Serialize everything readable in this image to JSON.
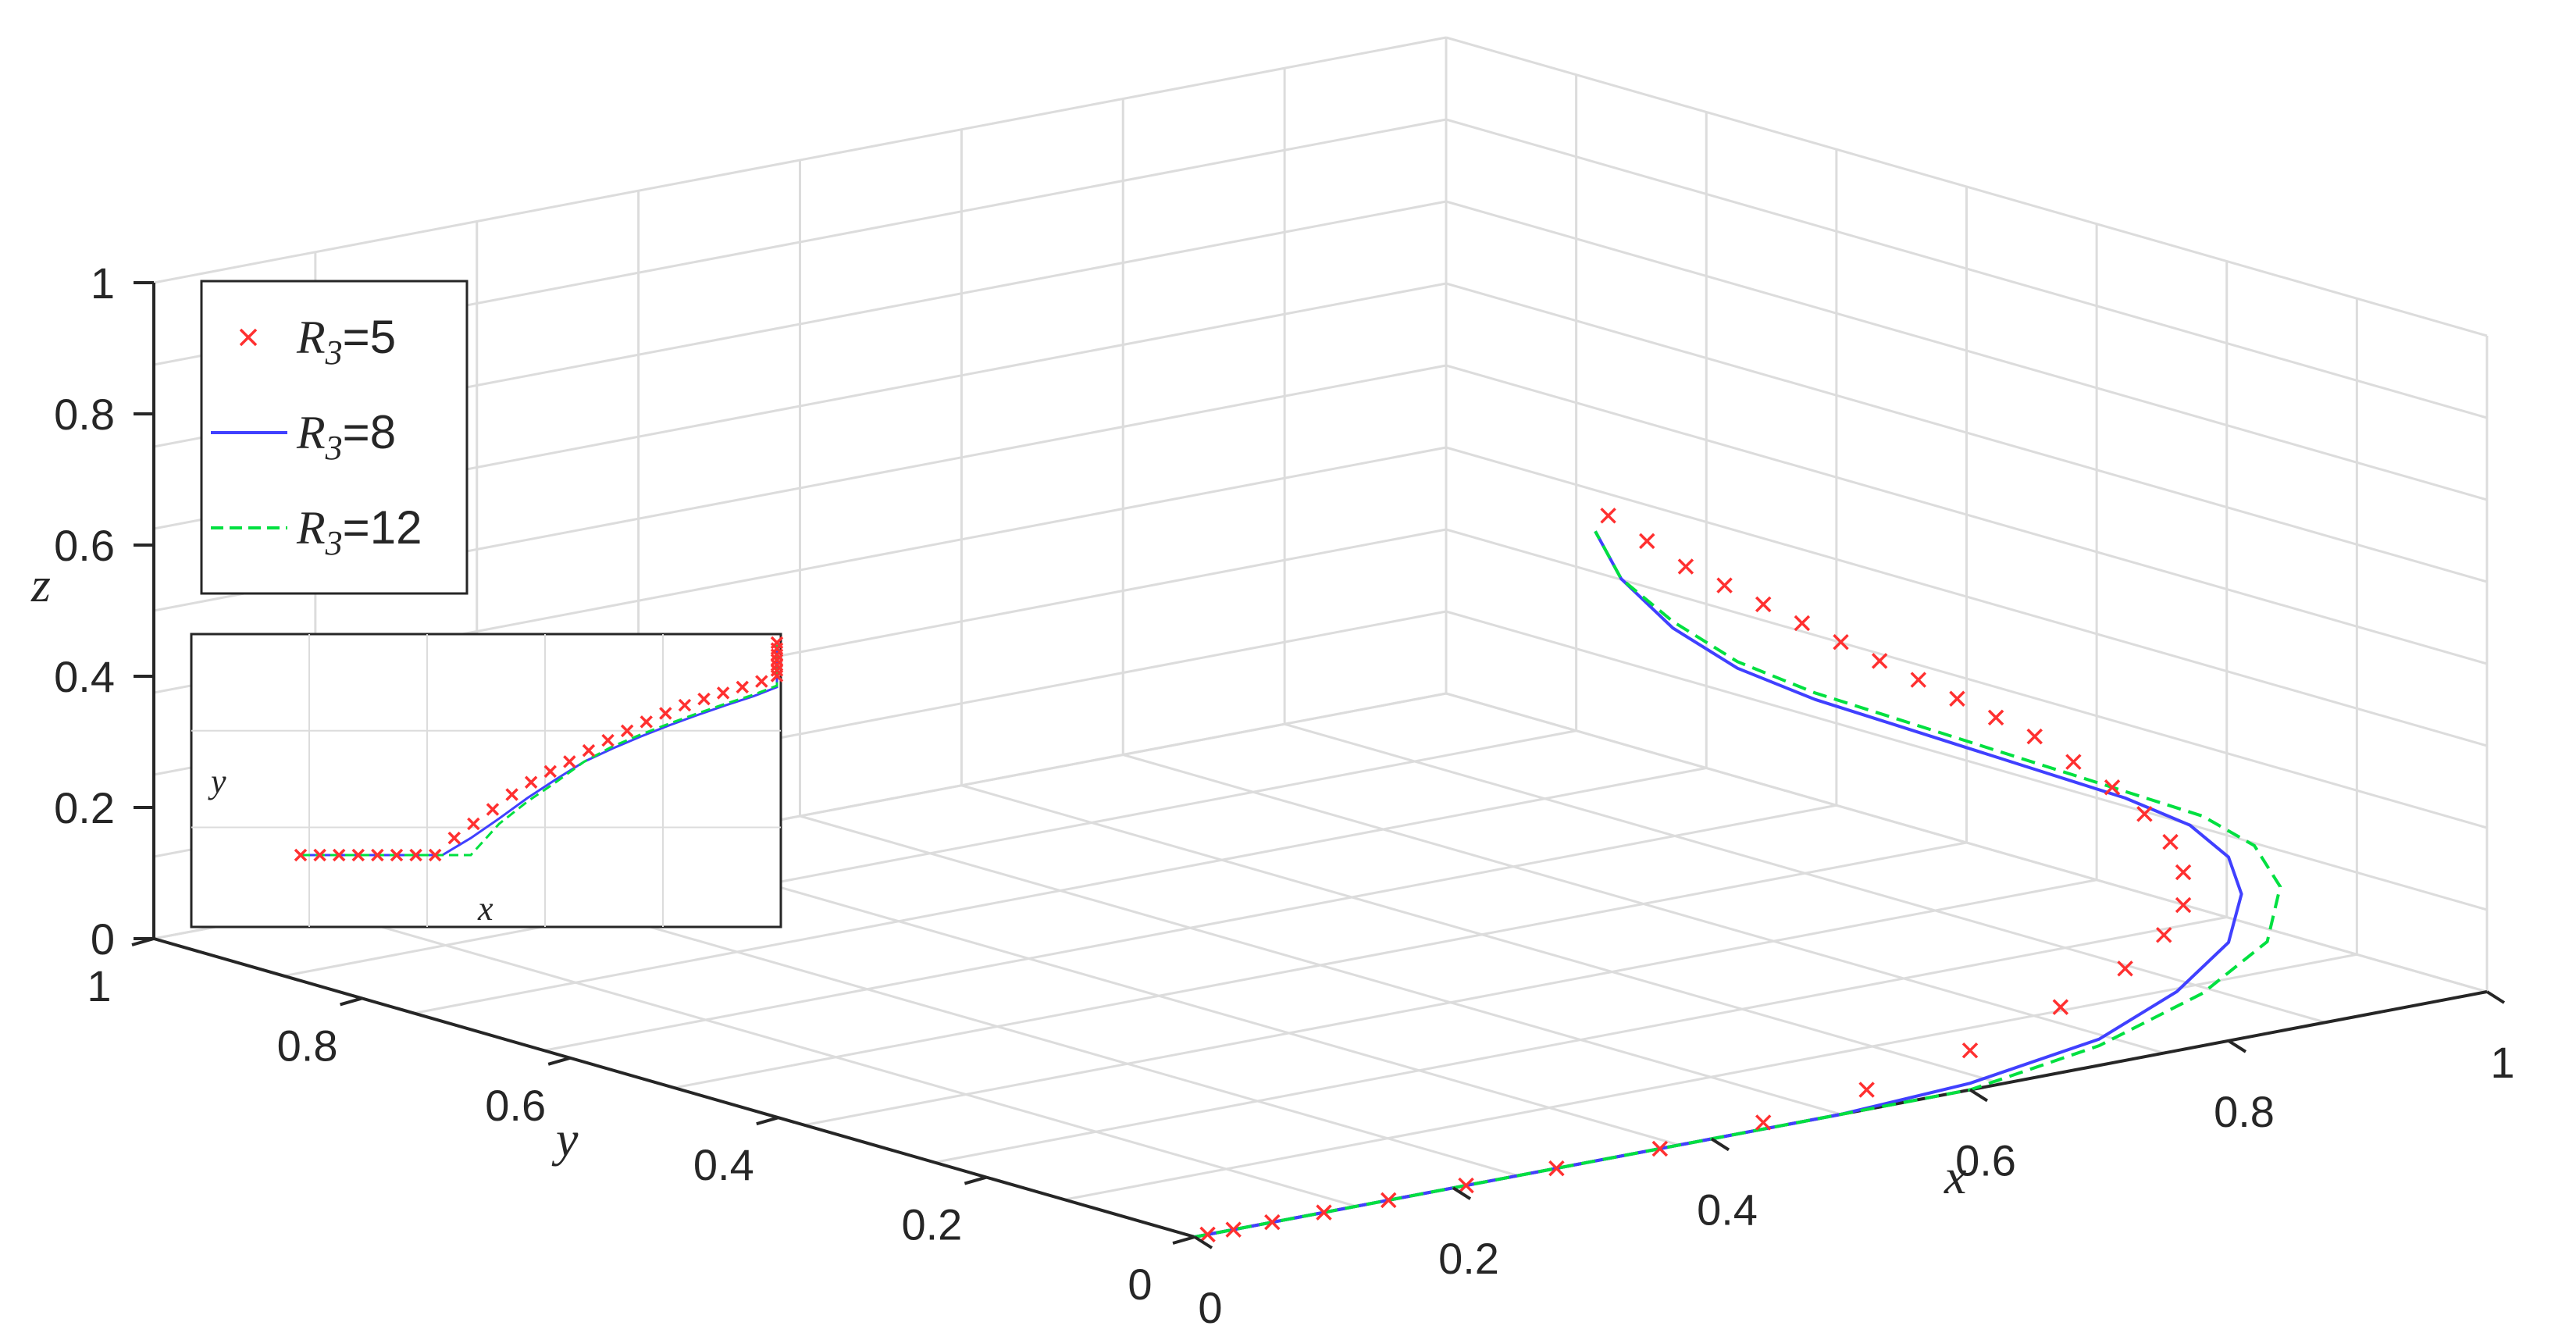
{
  "chart_data": {
    "type": "line",
    "projection": "3d",
    "title": "",
    "xlabel": "x",
    "ylabel": "y",
    "zlabel": "z",
    "xlim": [
      0,
      1
    ],
    "ylim": [
      0,
      1
    ],
    "zlim": [
      0,
      1
    ],
    "grid": true,
    "legend_position": "top-left",
    "x_ticks": [
      "0",
      "0.2",
      "0.4",
      "0.6",
      "0.8",
      "1"
    ],
    "y_ticks": [
      "0",
      "0.2",
      "0.4",
      "0.6",
      "0.8",
      "1"
    ],
    "z_ticks": [
      "0",
      "0.2",
      "0.4",
      "0.6",
      "0.8",
      "1"
    ],
    "series": [
      {
        "name": "R3=5",
        "legend_symbol": "R",
        "legend_subscript": "3",
        "legend_value": "=5",
        "style": "marker-x",
        "color": "#ff3030",
        "x": [
          0.01,
          0.03,
          0.06,
          0.1,
          0.15,
          0.21,
          0.28,
          0.36,
          0.44,
          0.52,
          0.6,
          0.67,
          0.72,
          0.75,
          0.765,
          0.765,
          0.755,
          0.735,
          0.71,
          0.68,
          0.65,
          0.62,
          0.59,
          0.56,
          0.53,
          0.5,
          0.47,
          0.44,
          0.41,
          0.38,
          0.35,
          0.32
        ],
        "y": [
          0.0,
          0.0,
          0.0,
          0.0,
          0.0,
          0.0,
          0.0,
          0.0,
          0.0,
          0.0,
          0.0,
          0.0,
          0.0,
          0.0,
          0.0,
          0.0,
          0.0,
          0.0,
          0.0,
          0.0,
          0.0,
          0.0,
          0.0,
          0.0,
          0.0,
          0.0,
          0.0,
          0.0,
          0.0,
          0.0,
          0.0,
          0.0
        ],
        "z": [
          0.0,
          0.0,
          0.0,
          0.0,
          0.0,
          0.0,
          0.0,
          0.0,
          0.01,
          0.03,
          0.06,
          0.1,
          0.14,
          0.18,
          0.22,
          0.27,
          0.32,
          0.37,
          0.42,
          0.47,
          0.52,
          0.56,
          0.6,
          0.64,
          0.68,
          0.72,
          0.76,
          0.8,
          0.84,
          0.88,
          0.93,
          0.98
        ]
      },
      {
        "name": "R3=8",
        "legend_symbol": "R",
        "legend_subscript": "3",
        "legend_value": "=8",
        "style": "solid",
        "color": "#4040ff",
        "x": [
          0.0,
          0.1,
          0.2,
          0.3,
          0.4,
          0.5,
          0.6,
          0.7,
          0.76,
          0.8,
          0.81,
          0.8,
          0.77,
          0.72,
          0.66,
          0.6,
          0.54,
          0.48,
          0.42,
          0.37,
          0.33,
          0.31
        ],
        "y": [
          0.0,
          0.0,
          0.0,
          0.0,
          0.0,
          0.0,
          0.0,
          0.0,
          0.0,
          0.0,
          0.0,
          0.0,
          0.0,
          0.0,
          0.0,
          0.0,
          0.0,
          0.0,
          0.0,
          0.0,
          0.0,
          0.0
        ],
        "z": [
          0.0,
          0.0,
          0.0,
          0.0,
          0.0,
          0.0,
          0.01,
          0.04,
          0.09,
          0.15,
          0.22,
          0.28,
          0.34,
          0.4,
          0.46,
          0.52,
          0.58,
          0.64,
          0.71,
          0.79,
          0.88,
          0.96
        ]
      },
      {
        "name": "R3=12",
        "legend_symbol": "R",
        "legend_subscript": "3",
        "legend_value": "=12",
        "style": "dashed",
        "color": "#00e040",
        "x": [
          0.0,
          0.1,
          0.2,
          0.3,
          0.4,
          0.5,
          0.6,
          0.7,
          0.78,
          0.83,
          0.84,
          0.82,
          0.78,
          0.72,
          0.66,
          0.6,
          0.54,
          0.48,
          0.42,
          0.37,
          0.33,
          0.31
        ],
        "y": [
          0.0,
          0.0,
          0.0,
          0.0,
          0.0,
          0.0,
          0.0,
          0.0,
          0.0,
          0.0,
          0.0,
          0.0,
          0.0,
          0.0,
          0.0,
          0.0,
          0.0,
          0.0,
          0.0,
          0.0,
          0.0,
          0.0
        ],
        "z": [
          0.0,
          0.0,
          0.0,
          0.0,
          0.0,
          0.0,
          0.0,
          0.03,
          0.08,
          0.14,
          0.22,
          0.29,
          0.35,
          0.41,
          0.47,
          0.53,
          0.59,
          0.65,
          0.72,
          0.8,
          0.88,
          0.96
        ]
      }
    ],
    "inset": {
      "xlabel": "x",
      "ylabel": "y",
      "projection": "x-y view"
    }
  }
}
